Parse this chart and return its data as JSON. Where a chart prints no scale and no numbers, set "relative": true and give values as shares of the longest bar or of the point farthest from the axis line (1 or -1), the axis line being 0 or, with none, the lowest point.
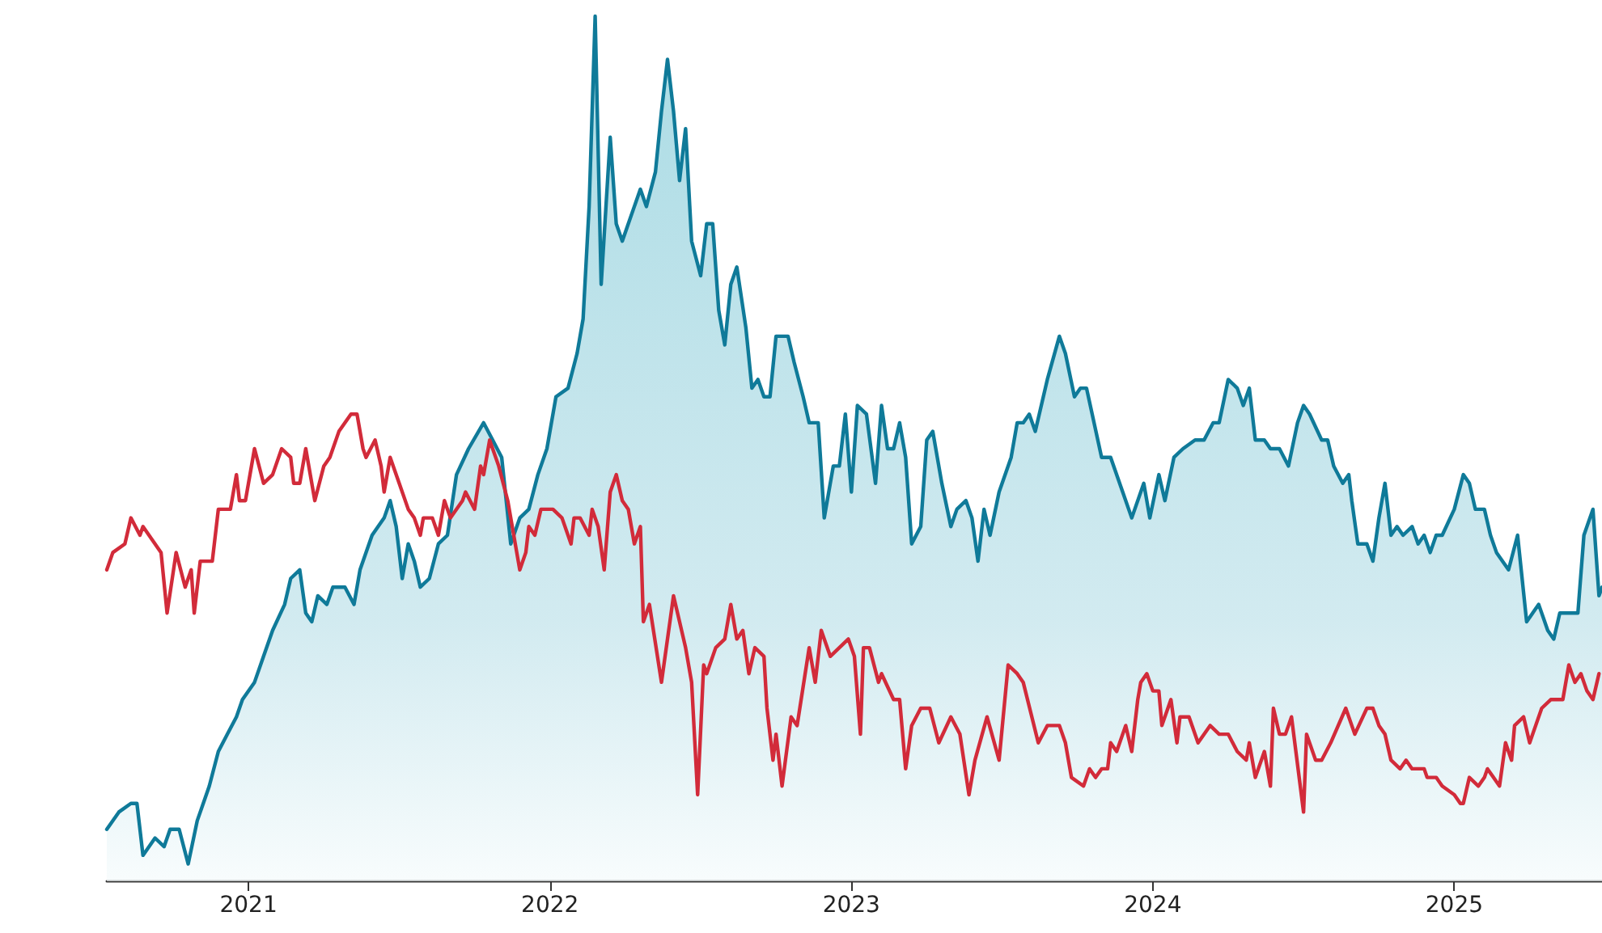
{
  "chart_data": {
    "type": "line",
    "relative": true,
    "marker": "none",
    "line_style": "solid",
    "grid": false,
    "xlim": [
      2020.53,
      2025.49
    ],
    "xticks": [
      2021,
      2022,
      2023,
      2024,
      2025
    ],
    "series": [
      {
        "type": "area",
        "color": "#0f7a99",
        "x": [
          2020.53,
          2020.57,
          2020.61,
          2020.63,
          2020.65,
          2020.69,
          2020.72,
          2020.74,
          2020.77,
          2020.8,
          2020.83,
          2020.87,
          2020.9,
          2020.93,
          2020.96,
          2020.98,
          2021.02,
          2021.05,
          2021.08,
          2021.12,
          2021.14,
          2021.17,
          2021.19,
          2021.21,
          2021.23,
          2021.26,
          2021.28,
          2021.32,
          2021.35,
          2021.37,
          2021.41,
          2021.45,
          2021.47,
          2021.49,
          2021.51,
          2021.53,
          2021.55,
          2021.57,
          2021.6,
          2021.63,
          2021.66,
          2021.69,
          2021.73,
          2021.78,
          2021.81,
          2021.84,
          2021.87,
          2021.9,
          2021.93,
          2021.96,
          2021.99,
          2022.02,
          2022.06,
          2022.09,
          2022.11,
          2022.13,
          2022.15,
          2022.17,
          2022.2,
          2022.22,
          2022.24,
          2022.26,
          2022.28,
          2022.3,
          2022.32,
          2022.35,
          2022.37,
          2022.39,
          2022.41,
          2022.43,
          2022.45,
          2022.47,
          2022.5,
          2022.52,
          2022.54,
          2022.56,
          2022.58,
          2022.6,
          2022.62,
          2022.65,
          2022.67,
          2022.69,
          2022.71,
          2022.73,
          2022.75,
          2022.79,
          2022.81,
          2022.84,
          2022.86,
          2022.89,
          2022.91,
          2022.94,
          2022.96,
          2022.98,
          2023.0,
          2023.02,
          2023.05,
          2023.08,
          2023.1,
          2023.12,
          2023.14,
          2023.16,
          2023.18,
          2023.2,
          2023.23,
          2023.25,
          2023.27,
          2023.3,
          2023.33,
          2023.35,
          2023.38,
          2023.4,
          2023.42,
          2023.44,
          2023.46,
          2023.49,
          2023.53,
          2023.55,
          2023.57,
          2023.59,
          2023.61,
          2023.65,
          2023.69,
          2023.71,
          2023.74,
          2023.76,
          2023.78,
          2023.83,
          2023.86,
          2023.9,
          2023.93,
          2023.97,
          2023.99,
          2024.02,
          2024.04,
          2024.07,
          2024.1,
          2024.14,
          2024.17,
          2024.2,
          2024.22,
          2024.25,
          2024.28,
          2024.3,
          2024.32,
          2024.34,
          2024.37,
          2024.39,
          2024.42,
          2024.45,
          2024.48,
          2024.5,
          2024.52,
          2024.56,
          2024.58,
          2024.6,
          2024.63,
          2024.65,
          2024.66,
          2024.68,
          2024.71,
          2024.73,
          2024.75,
          2024.77,
          2024.79,
          2024.81,
          2024.83,
          2024.86,
          2024.88,
          2024.9,
          2024.92,
          2024.94,
          2024.96,
          2025.0,
          2025.03,
          2025.05,
          2025.07,
          2025.1,
          2025.12,
          2025.14,
          2025.18,
          2025.21,
          2025.24,
          2025.26,
          2025.28,
          2025.31,
          2025.33,
          2025.35,
          2025.37,
          2025.41,
          2025.43,
          2025.46,
          2025.48,
          2025.49
        ],
        "values": [
          0.06,
          0.08,
          0.09,
          0.09,
          0.03,
          0.05,
          0.04,
          0.06,
          0.06,
          0.02,
          0.07,
          0.11,
          0.15,
          0.17,
          0.19,
          0.21,
          0.23,
          0.26,
          0.29,
          0.32,
          0.35,
          0.36,
          0.31,
          0.3,
          0.33,
          0.32,
          0.34,
          0.34,
          0.32,
          0.36,
          0.4,
          0.42,
          0.44,
          0.41,
          0.35,
          0.39,
          0.37,
          0.34,
          0.35,
          0.39,
          0.4,
          0.47,
          0.5,
          0.53,
          0.51,
          0.49,
          0.39,
          0.42,
          0.43,
          0.47,
          0.5,
          0.56,
          0.57,
          0.61,
          0.65,
          0.78,
          1,
          0.69,
          0.86,
          0.76,
          0.74,
          0.76,
          0.78,
          0.8,
          0.78,
          0.82,
          0.89,
          0.95,
          0.89,
          0.81,
          0.87,
          0.74,
          0.7,
          0.76,
          0.76,
          0.66,
          0.62,
          0.69,
          0.71,
          0.64,
          0.57,
          0.58,
          0.56,
          0.56,
          0.63,
          0.63,
          0.6,
          0.56,
          0.53,
          0.53,
          0.42,
          0.48,
          0.48,
          0.54,
          0.45,
          0.55,
          0.54,
          0.46,
          0.55,
          0.5,
          0.5,
          0.53,
          0.49,
          0.39,
          0.41,
          0.51,
          0.52,
          0.46,
          0.41,
          0.43,
          0.44,
          0.42,
          0.37,
          0.43,
          0.4,
          0.45,
          0.49,
          0.53,
          0.53,
          0.54,
          0.52,
          0.58,
          0.63,
          0.61,
          0.56,
          0.57,
          0.57,
          0.49,
          0.49,
          0.45,
          0.42,
          0.46,
          0.42,
          0.47,
          0.44,
          0.49,
          0.5,
          0.51,
          0.51,
          0.53,
          0.53,
          0.58,
          0.57,
          0.55,
          0.57,
          0.51,
          0.51,
          0.5,
          0.5,
          0.48,
          0.53,
          0.55,
          0.54,
          0.51,
          0.51,
          0.48,
          0.46,
          0.47,
          0.44,
          0.39,
          0.39,
          0.37,
          0.42,
          0.46,
          0.4,
          0.41,
          0.4,
          0.41,
          0.39,
          0.4,
          0.38,
          0.4,
          0.4,
          0.43,
          0.47,
          0.46,
          0.43,
          0.43,
          0.4,
          0.38,
          0.36,
          0.4,
          0.3,
          0.31,
          0.32,
          0.29,
          0.28,
          0.31,
          0.31,
          0.31,
          0.4,
          0.43,
          0.33,
          0.34
        ]
      },
      {
        "type": "line",
        "color": "#d22b3a",
        "x": [
          2020.53,
          2020.55,
          2020.59,
          2020.61,
          2020.64,
          2020.65,
          2020.67,
          2020.69,
          2020.71,
          2020.73,
          2020.76,
          2020.79,
          2020.81,
          2020.82,
          2020.84,
          2020.88,
          2020.9,
          2020.94,
          2020.96,
          2020.97,
          2020.99,
          2021.02,
          2021.05,
          2021.08,
          2021.11,
          2021.14,
          2021.15,
          2021.17,
          2021.19,
          2021.22,
          2021.25,
          2021.27,
          2021.3,
          2021.34,
          2021.36,
          2021.38,
          2021.39,
          2021.42,
          2021.44,
          2021.45,
          2021.47,
          2021.5,
          2021.53,
          2021.55,
          2021.57,
          2021.58,
          2021.61,
          2021.63,
          2021.65,
          2021.67,
          2021.71,
          2021.72,
          2021.75,
          2021.77,
          2021.78,
          2021.8,
          2021.83,
          2021.86,
          2021.87,
          2021.9,
          2021.92,
          2021.93,
          2021.95,
          2021.97,
          2022.01,
          2022.04,
          2022.07,
          2022.08,
          2022.1,
          2022.13,
          2022.14,
          2022.16,
          2022.18,
          2022.2,
          2022.22,
          2022.24,
          2022.26,
          2022.28,
          2022.3,
          2022.31,
          2022.33,
          2022.37,
          2022.41,
          2022.45,
          2022.47,
          2022.49,
          2022.51,
          2022.52,
          2022.55,
          2022.58,
          2022.6,
          2022.62,
          2022.64,
          2022.66,
          2022.68,
          2022.71,
          2022.72,
          2022.74,
          2022.75,
          2022.77,
          2022.8,
          2022.82,
          2022.86,
          2022.88,
          2022.9,
          2022.93,
          2022.96,
          2022.99,
          2023.01,
          2023.03,
          2023.04,
          2023.06,
          2023.09,
          2023.1,
          2023.14,
          2023.16,
          2023.18,
          2023.2,
          2023.23,
          2023.26,
          2023.29,
          2023.33,
          2023.36,
          2023.39,
          2023.41,
          2023.45,
          2023.49,
          2023.52,
          2023.55,
          2023.57,
          2023.62,
          2023.65,
          2023.69,
          2023.71,
          2023.73,
          2023.77,
          2023.79,
          2023.81,
          2023.83,
          2023.85,
          2023.86,
          2023.88,
          2023.91,
          2023.93,
          2023.95,
          2023.96,
          2023.98,
          2024.0,
          2024.02,
          2024.03,
          2024.06,
          2024.08,
          2024.09,
          2024.12,
          2024.15,
          2024.19,
          2024.22,
          2024.25,
          2024.28,
          2024.31,
          2024.32,
          2024.34,
          2024.37,
          2024.39,
          2024.4,
          2024.42,
          2024.44,
          2024.46,
          2024.5,
          2024.51,
          2024.54,
          2024.56,
          2024.59,
          2024.64,
          2024.67,
          2024.71,
          2024.73,
          2024.75,
          2024.77,
          2024.79,
          2024.82,
          2024.84,
          2024.86,
          2024.9,
          2024.91,
          2024.94,
          2024.96,
          2025.0,
          2025.02,
          2025.03,
          2025.05,
          2025.08,
          2025.1,
          2025.11,
          2025.13,
          2025.15,
          2025.17,
          2025.19,
          2025.2,
          2025.23,
          2025.25,
          2025.27,
          2025.29,
          2025.32,
          2025.36,
          2025.38,
          2025.4,
          2025.42,
          2025.44,
          2025.46,
          2025.48
        ],
        "values": [
          0.36,
          0.38,
          0.39,
          0.42,
          0.4,
          0.41,
          0.4,
          0.39,
          0.38,
          0.31,
          0.38,
          0.34,
          0.36,
          0.31,
          0.37,
          0.37,
          0.43,
          0.43,
          0.47,
          0.44,
          0.44,
          0.5,
          0.46,
          0.47,
          0.5,
          0.49,
          0.46,
          0.46,
          0.5,
          0.44,
          0.48,
          0.49,
          0.52,
          0.54,
          0.54,
          0.5,
          0.49,
          0.51,
          0.48,
          0.45,
          0.49,
          0.46,
          0.43,
          0.42,
          0.4,
          0.42,
          0.42,
          0.4,
          0.44,
          0.42,
          0.44,
          0.45,
          0.43,
          0.48,
          0.47,
          0.51,
          0.48,
          0.44,
          0.42,
          0.36,
          0.38,
          0.41,
          0.4,
          0.43,
          0.43,
          0.42,
          0.39,
          0.42,
          0.42,
          0.4,
          0.43,
          0.41,
          0.36,
          0.45,
          0.47,
          0.44,
          0.43,
          0.39,
          0.41,
          0.3,
          0.32,
          0.23,
          0.33,
          0.27,
          0.23,
          0.1,
          0.25,
          0.24,
          0.27,
          0.28,
          0.32,
          0.28,
          0.29,
          0.24,
          0.27,
          0.26,
          0.2,
          0.14,
          0.17,
          0.11,
          0.19,
          0.18,
          0.27,
          0.23,
          0.29,
          0.26,
          0.27,
          0.28,
          0.26,
          0.17,
          0.27,
          0.27,
          0.23,
          0.24,
          0.21,
          0.21,
          0.13,
          0.18,
          0.2,
          0.2,
          0.16,
          0.19,
          0.17,
          0.1,
          0.14,
          0.19,
          0.14,
          0.25,
          0.24,
          0.23,
          0.16,
          0.18,
          0.18,
          0.16,
          0.12,
          0.11,
          0.13,
          0.12,
          0.13,
          0.13,
          0.16,
          0.15,
          0.18,
          0.15,
          0.21,
          0.23,
          0.24,
          0.22,
          0.22,
          0.18,
          0.21,
          0.16,
          0.19,
          0.19,
          0.16,
          0.18,
          0.17,
          0.17,
          0.15,
          0.14,
          0.16,
          0.12,
          0.15,
          0.11,
          0.2,
          0.17,
          0.17,
          0.19,
          0.08,
          0.17,
          0.14,
          0.14,
          0.16,
          0.2,
          0.17,
          0.2,
          0.2,
          0.18,
          0.17,
          0.14,
          0.13,
          0.14,
          0.13,
          0.13,
          0.12,
          0.12,
          0.11,
          0.1,
          0.09,
          0.09,
          0.12,
          0.11,
          0.12,
          0.13,
          0.12,
          0.11,
          0.16,
          0.14,
          0.18,
          0.19,
          0.16,
          0.18,
          0.2,
          0.21,
          0.21,
          0.25,
          0.23,
          0.24,
          0.22,
          0.21,
          0.24
        ]
      }
    ]
  }
}
